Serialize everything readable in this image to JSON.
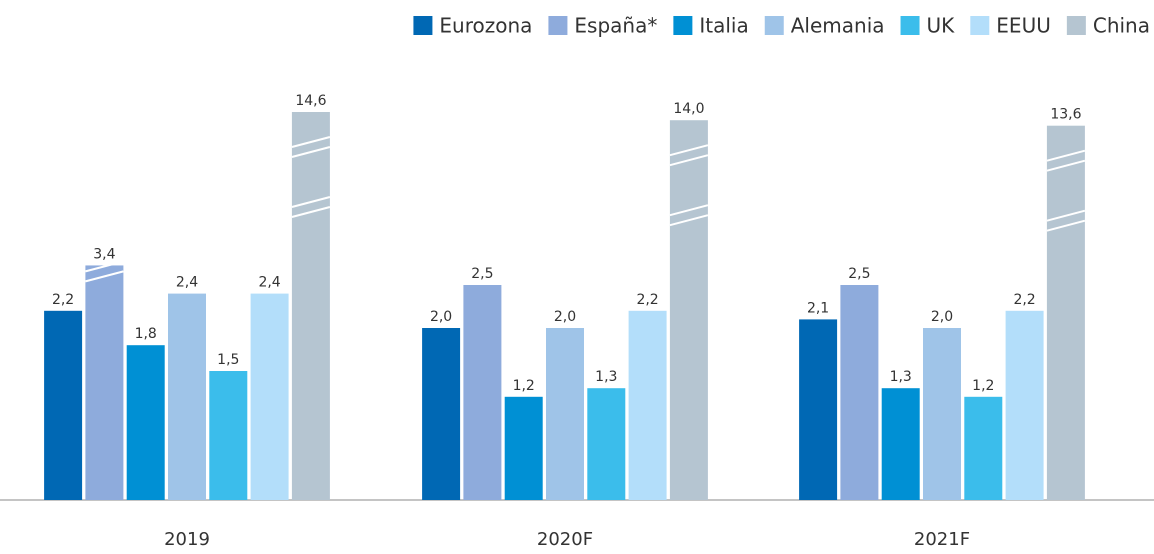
{
  "chart_data": {
    "type": "bar",
    "categories": [
      "2019",
      "2020F",
      "2021F"
    ],
    "series": [
      {
        "name": "Eurozona",
        "color": "#0068b4",
        "values": [
          2.2,
          2.0,
          2.1
        ],
        "value_labels": [
          "2,2",
          "2,0",
          "2,1"
        ]
      },
      {
        "name": "España*",
        "color": "#8eabdc",
        "values": [
          3.4,
          2.5,
          2.5
        ],
        "value_labels": [
          "3,4",
          "2,5",
          "2,5"
        ]
      },
      {
        "name": "Italia",
        "color": "#0090d4",
        "values": [
          1.8,
          1.2,
          1.3
        ],
        "value_labels": [
          "1,8",
          "1,2",
          "1,3"
        ]
      },
      {
        "name": "Alemania",
        "color": "#9fc4e8",
        "values": [
          2.4,
          2.0,
          2.0
        ],
        "value_labels": [
          "2,4",
          "2,0",
          "2,0"
        ]
      },
      {
        "name": "UK",
        "color": "#3bbdeb",
        "values": [
          1.5,
          1.3,
          1.2
        ],
        "value_labels": [
          "1,5",
          "1,3",
          "1,2"
        ]
      },
      {
        "name": "EEUU",
        "color": "#b3defa",
        "values": [
          2.4,
          2.2,
          2.2
        ],
        "value_labels": [
          "2,4",
          "2,2",
          "2,2"
        ]
      },
      {
        "name": "China",
        "color": "#b5c5d1",
        "values": [
          14.6,
          14.0,
          13.6
        ],
        "value_labels": [
          "14,6",
          "14,0",
          "13,6"
        ]
      }
    ],
    "legend": "top-right"
  }
}
